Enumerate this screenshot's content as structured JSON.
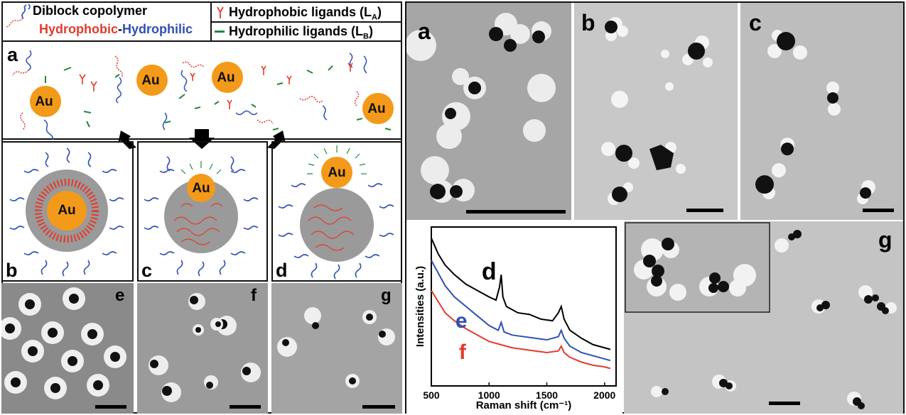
{
  "legend": {
    "diblock": "Diblock copolymer",
    "hydrophobic_part": "Hydrophobic",
    "dash": "-",
    "hydrophilic_part": "Hydrophilic",
    "ligand_a": "Hydrophobic ligands (L",
    "ligand_a_sub": "A",
    "ligand_b": "Hydrophilic ligands (L",
    "ligand_b_sub": "B",
    "close": ")"
  },
  "core_label": "Au",
  "panel_labels": {
    "a": "a",
    "b": "b",
    "c": "c",
    "d": "d",
    "e": "e",
    "f": "f",
    "g": "g"
  },
  "right_labels": {
    "a": "a",
    "b": "b",
    "c": "c",
    "g": "g"
  },
  "colors": {
    "hydrophobic": "#e33b2b",
    "hydrophilic": "#2f4fb5",
    "gold": "#f39a1a",
    "ligand_b": "#1f8a3a",
    "gray_core": "#9a9a9a"
  },
  "chart_data": {
    "type": "line",
    "xlabel": "Raman shift (cm⁻¹)",
    "ylabel": "Intensities (a.u.)",
    "xlim": [
      500,
      2100
    ],
    "xticks": [
      "500",
      "1000",
      "1500",
      "2000"
    ],
    "xtick_values": [
      500,
      1000,
      1500,
      2000
    ],
    "series": [
      {
        "name": "d",
        "color": "#000000",
        "x": [
          500,
          560,
          620,
          700,
          800,
          900,
          1000,
          1060,
          1090,
          1105,
          1120,
          1150,
          1250,
          1350,
          1450,
          1550,
          1600,
          1625,
          1650,
          1700,
          1800,
          1900,
          2000,
          2050
        ],
        "y": [
          0.93,
          0.83,
          0.76,
          0.7,
          0.64,
          0.6,
          0.56,
          0.54,
          0.62,
          0.7,
          0.56,
          0.5,
          0.46,
          0.45,
          0.42,
          0.41,
          0.46,
          0.5,
          0.42,
          0.35,
          0.3,
          0.26,
          0.24,
          0.23
        ]
      },
      {
        "name": "e",
        "color": "#2f4fb5",
        "x": [
          500,
          560,
          620,
          700,
          800,
          900,
          1000,
          1080,
          1105,
          1130,
          1200,
          1300,
          1400,
          1500,
          1600,
          1625,
          1650,
          1700,
          1800,
          1900,
          2000,
          2050
        ],
        "y": [
          0.79,
          0.71,
          0.63,
          0.56,
          0.5,
          0.44,
          0.38,
          0.35,
          0.4,
          0.34,
          0.32,
          0.31,
          0.3,
          0.29,
          0.31,
          0.35,
          0.3,
          0.25,
          0.21,
          0.19,
          0.17,
          0.16
        ]
      },
      {
        "name": "f",
        "color": "#e33b2b",
        "x": [
          500,
          560,
          620,
          700,
          800,
          900,
          1000,
          1100,
          1200,
          1300,
          1400,
          1500,
          1600,
          1625,
          1650,
          1700,
          1800,
          1900,
          2000,
          2050
        ],
        "y": [
          0.6,
          0.53,
          0.46,
          0.41,
          0.36,
          0.32,
          0.28,
          0.26,
          0.24,
          0.23,
          0.22,
          0.21,
          0.22,
          0.25,
          0.21,
          0.18,
          0.15,
          0.13,
          0.12,
          0.11
        ]
      }
    ],
    "series_labels": [
      "d",
      "e",
      "f"
    ]
  }
}
